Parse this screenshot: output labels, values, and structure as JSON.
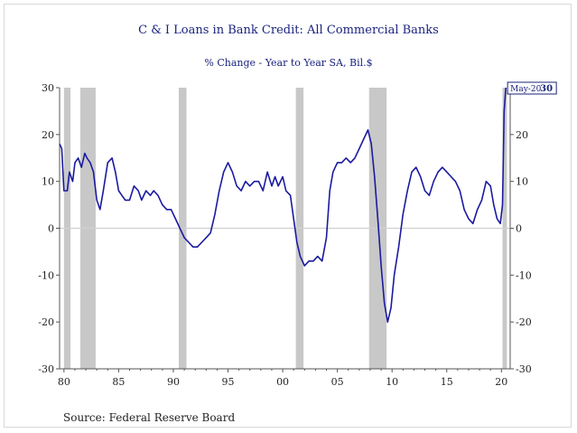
{
  "chart_data": {
    "type": "line",
    "title": "C & I Loans in Bank Credit: All Commercial Banks",
    "subtitle": "% Change - Year to Year    SA, Bil.$",
    "source": "Source:  Federal Reserve Board",
    "xlim": [
      1979.6,
      2020.8
    ],
    "ylim": [
      -30,
      30
    ],
    "y_ticks": [
      30,
      20,
      10,
      0,
      -10,
      -20,
      -30
    ],
    "y_tick_labels": [
      "30",
      "20",
      "10",
      "0",
      "-10",
      "-20",
      "-30"
    ],
    "x_ticks": [
      1980,
      1985,
      1990,
      1995,
      2000,
      2005,
      2010,
      2015,
      2020
    ],
    "x_tick_labels": [
      "80",
      "85",
      "90",
      "95",
      "00",
      "05",
      "10",
      "15",
      "20"
    ],
    "recessions": [
      [
        1980.0,
        1980.6
      ],
      [
        1981.5,
        1982.9
      ],
      [
        1990.5,
        1991.2
      ],
      [
        2001.2,
        2001.9
      ],
      [
        2007.9,
        2009.5
      ],
      [
        2020.1,
        2020.5
      ]
    ],
    "annotation": {
      "label": "May-20",
      "value": "30"
    },
    "colors": {
      "line": "#1a1aa0",
      "recession": "#c8c8c8",
      "zero_line": "#d0d0d0",
      "axis": "#555555"
    },
    "series": [
      {
        "x": [
          1979.6,
          1979.8,
          1980.0,
          1980.3,
          1980.5,
          1980.8,
          1981.0,
          1981.3,
          1981.6,
          1981.9,
          1982.1,
          1982.4,
          1982.7,
          1983.0,
          1983.3,
          1983.6,
          1984.0,
          1984.4,
          1984.7,
          1985.0,
          1985.3,
          1985.6,
          1986.0,
          1986.4,
          1986.8,
          1987.1,
          1987.5,
          1987.9,
          1988.2,
          1988.6,
          1989.0,
          1989.4,
          1989.8,
          1990.2,
          1990.6,
          1991.0,
          1991.4,
          1991.8,
          1992.2,
          1992.6,
          1993.0,
          1993.4,
          1993.8,
          1994.2,
          1994.6,
          1995.0,
          1995.4,
          1995.8,
          1996.2,
          1996.6,
          1997.0,
          1997.4,
          1997.8,
          1998.2,
          1998.6,
          1999.0,
          1999.3,
          1999.6,
          2000.0,
          2000.3,
          2000.7,
          2001.0,
          2001.3,
          2001.6,
          2002.0,
          2002.4,
          2002.8,
          2003.2,
          2003.6,
          2004.0,
          2004.3,
          2004.6,
          2005.0,
          2005.4,
          2005.8,
          2006.2,
          2006.6,
          2007.0,
          2007.4,
          2007.8,
          2008.1,
          2008.4,
          2008.7,
          2009.0,
          2009.3,
          2009.6,
          2009.9,
          2010.2,
          2010.6,
          2011.0,
          2011.4,
          2011.8,
          2012.2,
          2012.6,
          2013.0,
          2013.4,
          2013.8,
          2014.2,
          2014.6,
          2015.0,
          2015.4,
          2015.8,
          2016.2,
          2016.6,
          2017.0,
          2017.4,
          2017.8,
          2018.2,
          2018.6,
          2019.0,
          2019.3,
          2019.6,
          2019.9,
          2020.1,
          2020.25,
          2020.4
        ],
        "y": [
          18,
          17,
          8,
          8,
          12,
          10,
          14,
          15,
          13,
          16,
          15,
          14,
          12,
          6,
          4,
          8,
          14,
          15,
          12,
          8,
          7,
          6,
          6,
          9,
          8,
          6,
          8,
          7,
          8,
          7,
          5,
          4,
          4,
          2,
          0,
          -2,
          -3,
          -4,
          -4,
          -3,
          -2,
          -1,
          3,
          8,
          12,
          14,
          12,
          9,
          8,
          10,
          9,
          10,
          10,
          8,
          12,
          9,
          11,
          9,
          11,
          8,
          7,
          2,
          -3,
          -6,
          -8,
          -7,
          -7,
          -6,
          -7,
          -2,
          8,
          12,
          14,
          14,
          15,
          14,
          15,
          17,
          19,
          21,
          18,
          11,
          2,
          -8,
          -16,
          -20,
          -17,
          -10,
          -4,
          3,
          8,
          12,
          13,
          11,
          8,
          7,
          10,
          12,
          13,
          12,
          11,
          10,
          8,
          4,
          2,
          1,
          4,
          6,
          10,
          9,
          5,
          2,
          1,
          5,
          25,
          30
        ]
      }
    ]
  }
}
